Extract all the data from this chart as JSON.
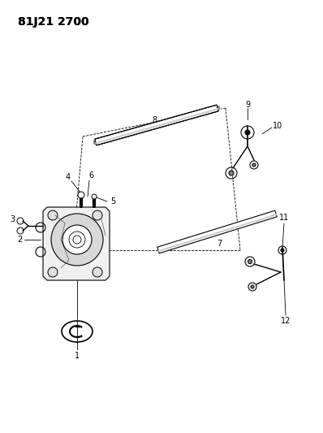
{
  "title": "81J21 2700",
  "bg_color": "#ffffff",
  "title_fontsize": 10,
  "figsize": [
    3.98,
    5.33
  ],
  "dpi": 100,
  "line_color": "#000000",
  "line_width": 0.8,
  "font_size": 7
}
